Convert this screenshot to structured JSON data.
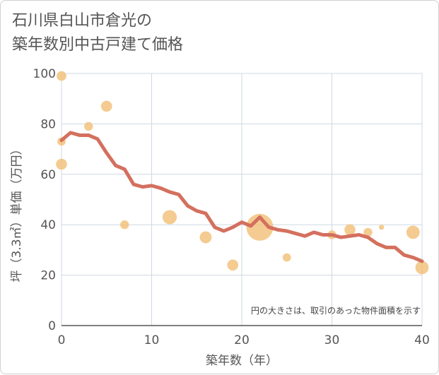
{
  "title": {
    "line1": "石川県白山市倉光の",
    "line2": "築年数別中古戸建て価格"
  },
  "chart_data": {
    "type": "scatter",
    "title": "石川県白山市倉光の築年数別中古戸建て価格",
    "xlabel": "築年数（年）",
    "ylabel": "坪（3.3㎡）単価（万円）",
    "xlim": [
      0,
      40
    ],
    "ylim": [
      0,
      100
    ],
    "x_ticks": [
      0,
      10,
      20,
      30,
      40
    ],
    "y_ticks": [
      0,
      20,
      40,
      60,
      80,
      100
    ],
    "grid": true,
    "note": "円の大きさは、取引のあった物件面積を示す",
    "colors": {
      "bubble": "#f2c27d",
      "line": "#d4705e",
      "grid": "#cfd8e3"
    },
    "bubbles": [
      {
        "x": 0,
        "y": 99,
        "size": 1.2
      },
      {
        "x": 0,
        "y": 73,
        "size": 0.9
      },
      {
        "x": 0,
        "y": 64,
        "size": 1.5
      },
      {
        "x": 3,
        "y": 79,
        "size": 1.0
      },
      {
        "x": 5,
        "y": 87,
        "size": 1.5
      },
      {
        "x": 7,
        "y": 40,
        "size": 1.0
      },
      {
        "x": 12,
        "y": 43,
        "size": 2.2
      },
      {
        "x": 16,
        "y": 35,
        "size": 1.7
      },
      {
        "x": 19,
        "y": 24,
        "size": 1.5
      },
      {
        "x": 22,
        "y": 39,
        "size": 5.0
      },
      {
        "x": 25,
        "y": 27,
        "size": 0.9
      },
      {
        "x": 30,
        "y": 36,
        "size": 1.0
      },
      {
        "x": 32,
        "y": 38,
        "size": 1.5
      },
      {
        "x": 34,
        "y": 37,
        "size": 1.0
      },
      {
        "x": 35.5,
        "y": 39,
        "size": 0.2
      },
      {
        "x": 39,
        "y": 37,
        "size": 2.0
      },
      {
        "x": 40,
        "y": 23,
        "size": 2.0
      }
    ],
    "trend": {
      "x": [
        0,
        1,
        2,
        3,
        4,
        5,
        6,
        7,
        8,
        9,
        10,
        11,
        12,
        13,
        14,
        15,
        16,
        17,
        18,
        19,
        20,
        21,
        22,
        23,
        24,
        25,
        26,
        27,
        28,
        29,
        30,
        31,
        32,
        33,
        34,
        35,
        36,
        37,
        38,
        39,
        40
      ],
      "y": [
        73.5,
        76.5,
        75.5,
        75.5,
        74,
        68.5,
        63.5,
        62,
        56,
        55,
        55.5,
        54.5,
        53,
        52,
        47.5,
        45.5,
        44.5,
        39,
        37.5,
        39,
        41,
        39.5,
        43,
        39,
        38,
        37.5,
        36.5,
        35.5,
        37,
        36,
        36,
        35,
        35.5,
        36,
        35,
        32.5,
        31,
        31,
        28,
        27,
        25.5
      ]
    }
  }
}
